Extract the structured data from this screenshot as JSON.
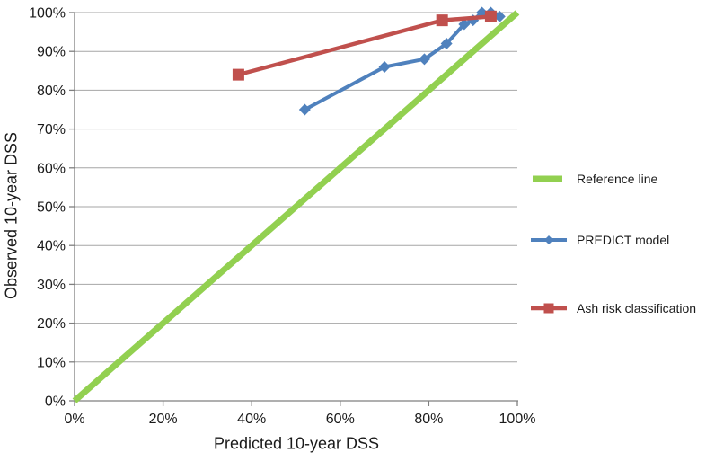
{
  "figure": {
    "background": "#FFFFFF"
  },
  "colors": {
    "axis": "#7F7F7F",
    "gridline": "#A6A6A6",
    "tick_text": "#1A1A1A",
    "title_text": "#1A1A1A"
  },
  "chart_data": {
    "type": "line",
    "title": "",
    "xlabel": "Predicted 10-year DSS",
    "ylabel": "Observed 10-year DSS",
    "xlim": [
      0,
      100
    ],
    "ylim": [
      0,
      100
    ],
    "grid": "horizontal-only",
    "legend_position": "right-middle",
    "x_ticks": {
      "values": [
        0,
        20,
        40,
        60,
        80,
        100
      ],
      "labels": [
        "0%",
        "20%",
        "40%",
        "60%",
        "80%",
        "100%"
      ]
    },
    "y_ticks": {
      "values": [
        0,
        10,
        20,
        30,
        40,
        50,
        60,
        70,
        80,
        90,
        100
      ],
      "labels": [
        "0%",
        "10%",
        "20%",
        "30%",
        "40%",
        "50%",
        "60%",
        "70%",
        "80%",
        "90%",
        "100%"
      ]
    },
    "series": [
      {
        "name": "Reference line",
        "color": "#92D050",
        "marker": "none",
        "line_width": 7,
        "points": [
          [
            0,
            0
          ],
          [
            100,
            100
          ]
        ]
      },
      {
        "name": "PREDICT model",
        "color": "#4F81BD",
        "marker": "diamond",
        "marker_size": 13,
        "line_width": 4,
        "points": [
          [
            52,
            75
          ],
          [
            70,
            86
          ],
          [
            79,
            88
          ],
          [
            84,
            92
          ],
          [
            88,
            97
          ],
          [
            90,
            98
          ],
          [
            92,
            100
          ],
          [
            94,
            100
          ],
          [
            96,
            99
          ]
        ]
      },
      {
        "name": "Ash risk classification",
        "color": "#C0504D",
        "marker": "square",
        "marker_size": 13,
        "line_width": 4.5,
        "points": [
          [
            37,
            84
          ],
          [
            83,
            98
          ],
          [
            94,
            99
          ]
        ]
      }
    ]
  }
}
